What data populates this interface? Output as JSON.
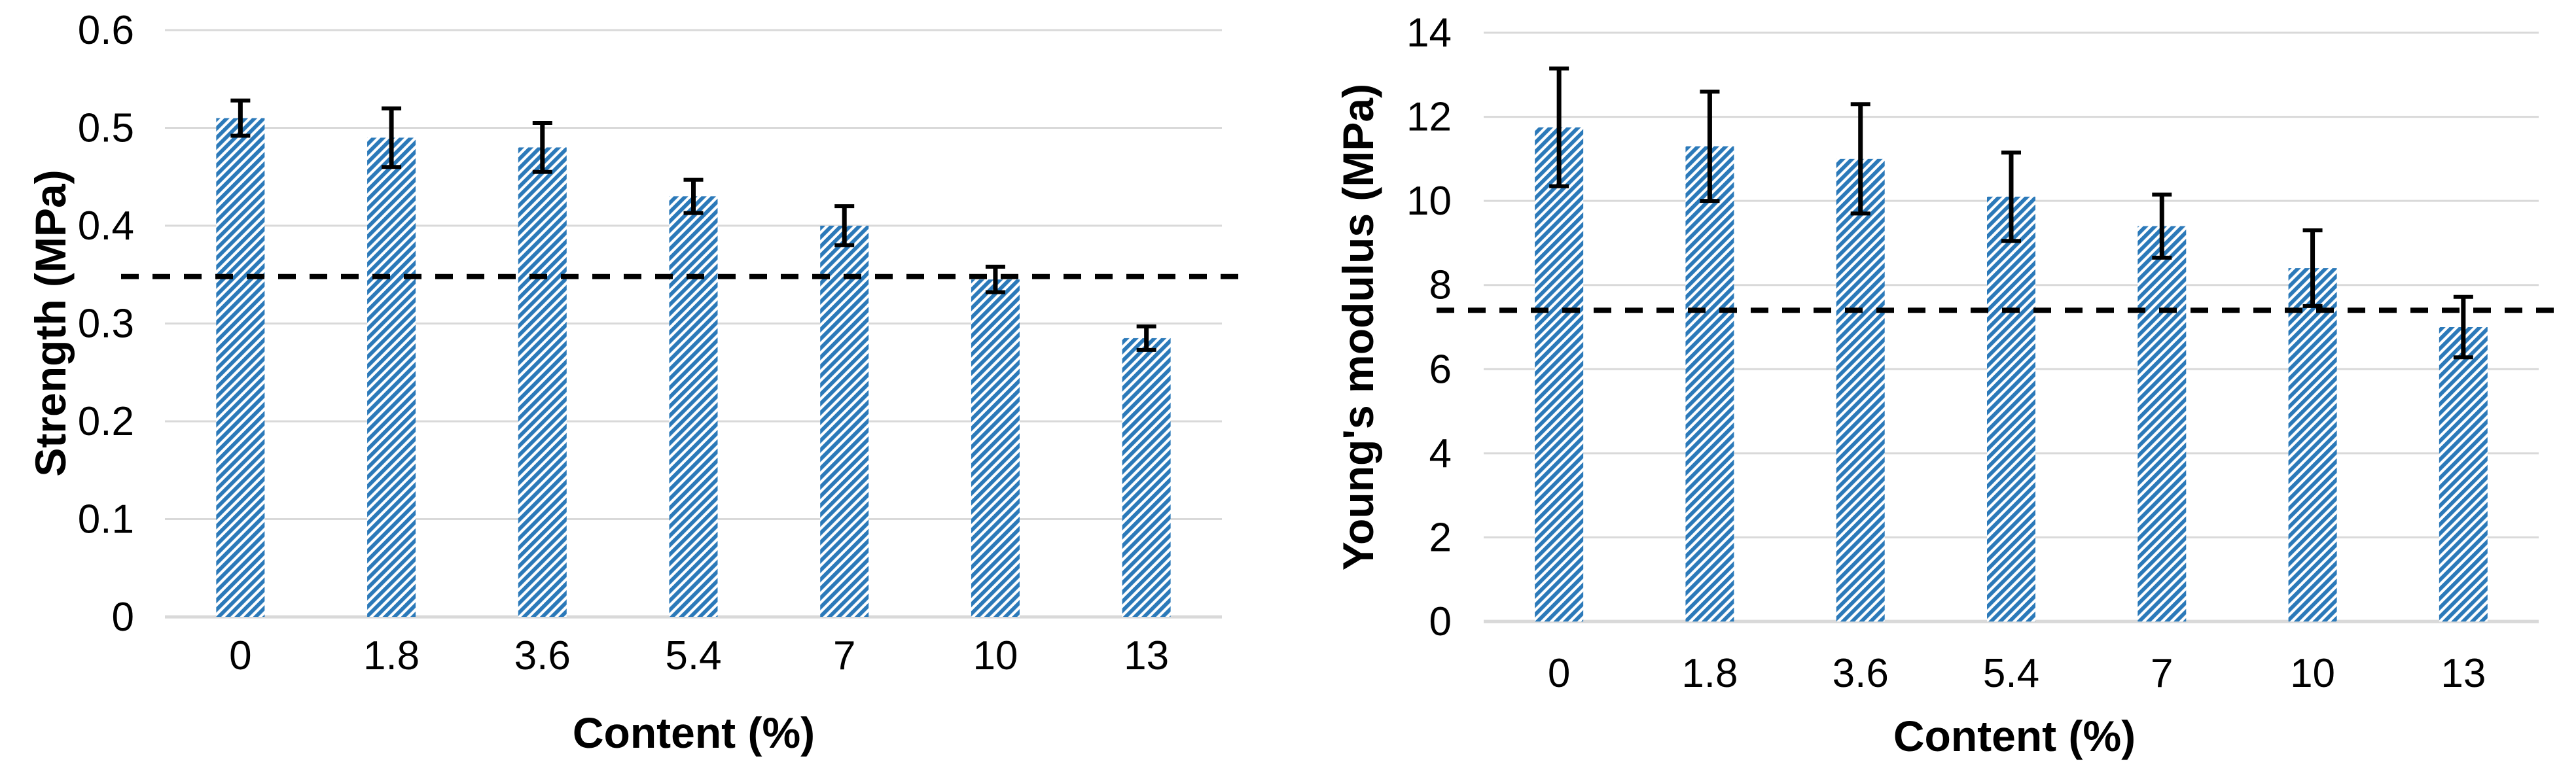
{
  "figure": {
    "background": "#ffffff",
    "description": "Two side-by-side hatched bar charts with error bars and a dashed horizontal reference line"
  },
  "colors": {
    "bar_hatch_blue": "#2B79B9",
    "hatch_background": "#ffffff",
    "gridline_gray": "#D9D9D9",
    "error_bar_black": "#000000",
    "dashed_line_black": "#000000",
    "text_black": "#000000"
  },
  "chart_data": [
    {
      "type": "bar",
      "title": "",
      "ylabel": "Strength (MPa)",
      "xlabel": "Content (%)",
      "categories": [
        "0",
        "1.8",
        "3.6",
        "5.4",
        "7",
        "10",
        "13"
      ],
      "values": [
        0.51,
        0.49,
        0.48,
        0.43,
        0.4,
        0.345,
        0.285
      ],
      "error_bars": [
        0.018,
        0.03,
        0.025,
        0.017,
        0.02,
        0.013,
        0.012
      ],
      "dashed_reference_line": 0.348,
      "ylim": [
        0,
        0.6
      ],
      "ytick_labels": [
        "0",
        "0.1",
        "0.2",
        "0.3",
        "0.4",
        "0.5",
        "0.6"
      ],
      "grid": true,
      "legend_position": "none",
      "bar_fill": "blue-diagonal-hatch"
    },
    {
      "type": "bar",
      "title": "",
      "ylabel": "Young's modulus (MPa)",
      "xlabel": "Content (%)",
      "categories": [
        "0",
        "1.8",
        "3.6",
        "5.4",
        "7",
        "10",
        "13"
      ],
      "values": [
        11.75,
        11.3,
        11.0,
        10.1,
        9.4,
        8.4,
        7.0
      ],
      "error_bars": [
        1.4,
        1.3,
        1.3,
        1.05,
        0.75,
        0.9,
        0.72
      ],
      "dashed_reference_line": 7.4,
      "ylim": [
        0,
        14
      ],
      "ytick_labels": [
        "0",
        "2",
        "4",
        "6",
        "8",
        "10",
        "12",
        "14"
      ],
      "grid": true,
      "legend_position": "none",
      "bar_fill": "blue-diagonal-hatch"
    }
  ]
}
